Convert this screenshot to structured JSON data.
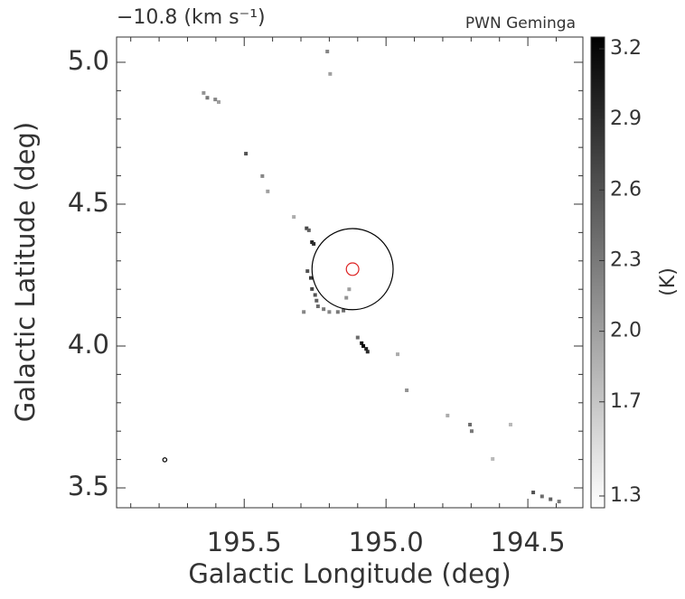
{
  "chart_data": {
    "type": "pixelmap",
    "title": "−10.8 (km s⁻¹)",
    "subtitle": "PWN Geminga",
    "x_label": "Galactic Longitude (deg)",
    "y_label": "Galactic Latitude (deg)",
    "colorbar_label": "(K)",
    "xlim": [
      195.95,
      194.306
    ],
    "ylim": [
      3.43,
      5.089
    ],
    "xticks": [
      {
        "value": 195.5,
        "label": "195.5"
      },
      {
        "value": 195.0,
        "label": "195.0"
      },
      {
        "value": 194.5,
        "label": "194.5"
      }
    ],
    "yticks": [
      3.5,
      {
        "value": 4.0,
        "label": "4.0"
      },
      4.5,
      {
        "value": 5.0,
        "label": "5.0"
      }
    ],
    "xminorticks": [
      195.9,
      195.8,
      195.7,
      195.6,
      195.4,
      195.3,
      195.2,
      195.1,
      194.9,
      194.8,
      194.7,
      194.6,
      194.4
    ],
    "yminorticks": [
      3.6,
      3.7,
      3.8,
      3.9,
      4.1,
      4.2,
      4.3,
      4.4,
      4.6,
      4.7,
      4.8,
      4.9
    ],
    "clim": [
      1.25,
      3.25
    ],
    "cticks": [
      1.3,
      1.7,
      {
        "value": 2.0,
        "label": "2.0"
      },
      2.3,
      2.6,
      2.9,
      3.2
    ],
    "x": [
      195.207,
      195.197,
      195.643,
      195.63,
      195.602,
      195.59,
      195.494,
      195.436,
      195.417,
      195.325,
      195.28,
      195.272,
      195.261,
      195.255,
      195.277,
      195.265,
      195.261,
      195.25,
      195.245,
      195.24,
      195.22,
      195.2,
      195.17,
      195.15,
      195.14,
      195.13,
      195.29,
      195.086,
      195.08,
      195.07,
      195.065,
      195.1,
      194.959,
      194.927,
      194.783,
      194.704,
      194.698,
      194.561,
      194.624,
      194.481,
      194.45,
      194.42,
      194.39
    ],
    "y": [
      5.038,
      4.959,
      4.892,
      4.875,
      4.869,
      4.86,
      4.678,
      4.599,
      4.545,
      4.455,
      4.415,
      4.408,
      4.366,
      4.36,
      4.264,
      4.24,
      4.201,
      4.18,
      4.16,
      4.14,
      4.13,
      4.12,
      4.12,
      4.125,
      4.17,
      4.2,
      4.12,
      4.01,
      4.0,
      3.99,
      3.98,
      4.03,
      3.971,
      3.844,
      3.755,
      3.723,
      3.7,
      3.723,
      3.602,
      3.484,
      3.47,
      3.46,
      3.452
    ],
    "values": [
      2.2,
      2.0,
      2.1,
      2.3,
      2.2,
      2.0,
      2.6,
      2.2,
      2.0,
      1.9,
      2.7,
      2.5,
      3.0,
      2.9,
      2.6,
      2.8,
      2.7,
      2.6,
      2.5,
      2.4,
      2.3,
      2.2,
      2.3,
      2.4,
      2.1,
      2.0,
      2.2,
      3.1,
      3.2,
      3.0,
      2.9,
      2.4,
      1.9,
      2.1,
      1.9,
      2.4,
      2.3,
      1.8,
      1.8,
      2.6,
      2.4,
      2.5,
      2.3
    ],
    "circles": [
      {
        "x": 195.118,
        "y": 4.271,
        "r": 0.143,
        "color": "#000000"
      },
      {
        "x": 195.118,
        "y": 4.271,
        "r": 0.022,
        "color": "#dd2222"
      },
      {
        "x": 195.78,
        "y": 3.599,
        "r": 0.007,
        "color": "#000000"
      }
    ]
  }
}
